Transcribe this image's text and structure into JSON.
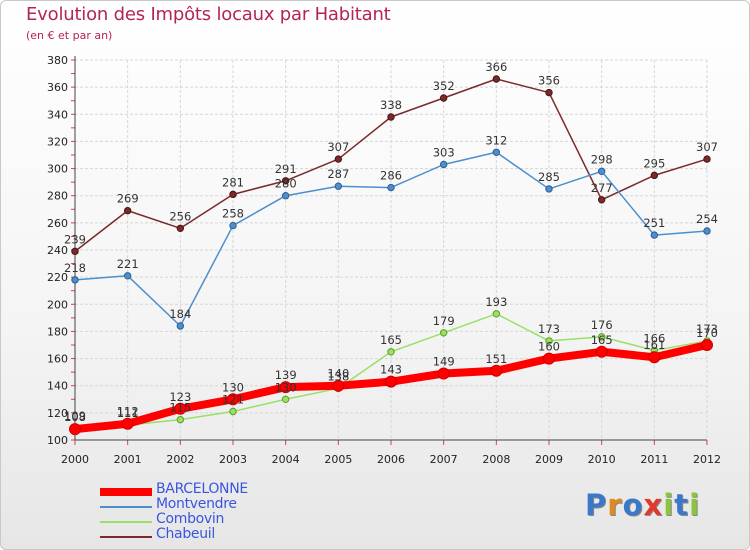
{
  "header": {
    "title": "Evolution des Impôts locaux par Habitant",
    "subtitle": "(en € et par an)"
  },
  "brand": {
    "logo_text": "Proxiti"
  },
  "chart_data": {
    "type": "line",
    "title": "Evolution des Impôts locaux par Habitant",
    "subtitle": "(en € et par an)",
    "xlabel": "",
    "ylabel": "",
    "ylim": [
      100,
      380
    ],
    "ytick_step": 20,
    "categories": [
      "2000",
      "2001",
      "2002",
      "2003",
      "2004",
      "2005",
      "2006",
      "2007",
      "2008",
      "2009",
      "2010",
      "2011",
      "2012"
    ],
    "series": [
      {
        "name": "BARCELONNE",
        "color": "#ff0000",
        "values": [
          108,
          112,
          123,
          130,
          139,
          140,
          143,
          149,
          151,
          160,
          165,
          161,
          170
        ]
      },
      {
        "name": "Montvendre",
        "color": "#4d8fcc",
        "values": [
          218,
          221,
          184,
          258,
          280,
          287,
          286,
          303,
          312,
          285,
          298,
          251,
          254
        ]
      },
      {
        "name": "Combovin",
        "color": "#99e066",
        "values": [
          109,
          111,
          115,
          121,
          130,
          138,
          165,
          179,
          193,
          173,
          176,
          166,
          173
        ]
      },
      {
        "name": "Chabeuil",
        "color": "#7a2a2a",
        "values": [
          239,
          269,
          256,
          281,
          291,
          307,
          338,
          352,
          366,
          356,
          277,
          295,
          307
        ]
      }
    ],
    "legend_position": "bottom-left"
  }
}
